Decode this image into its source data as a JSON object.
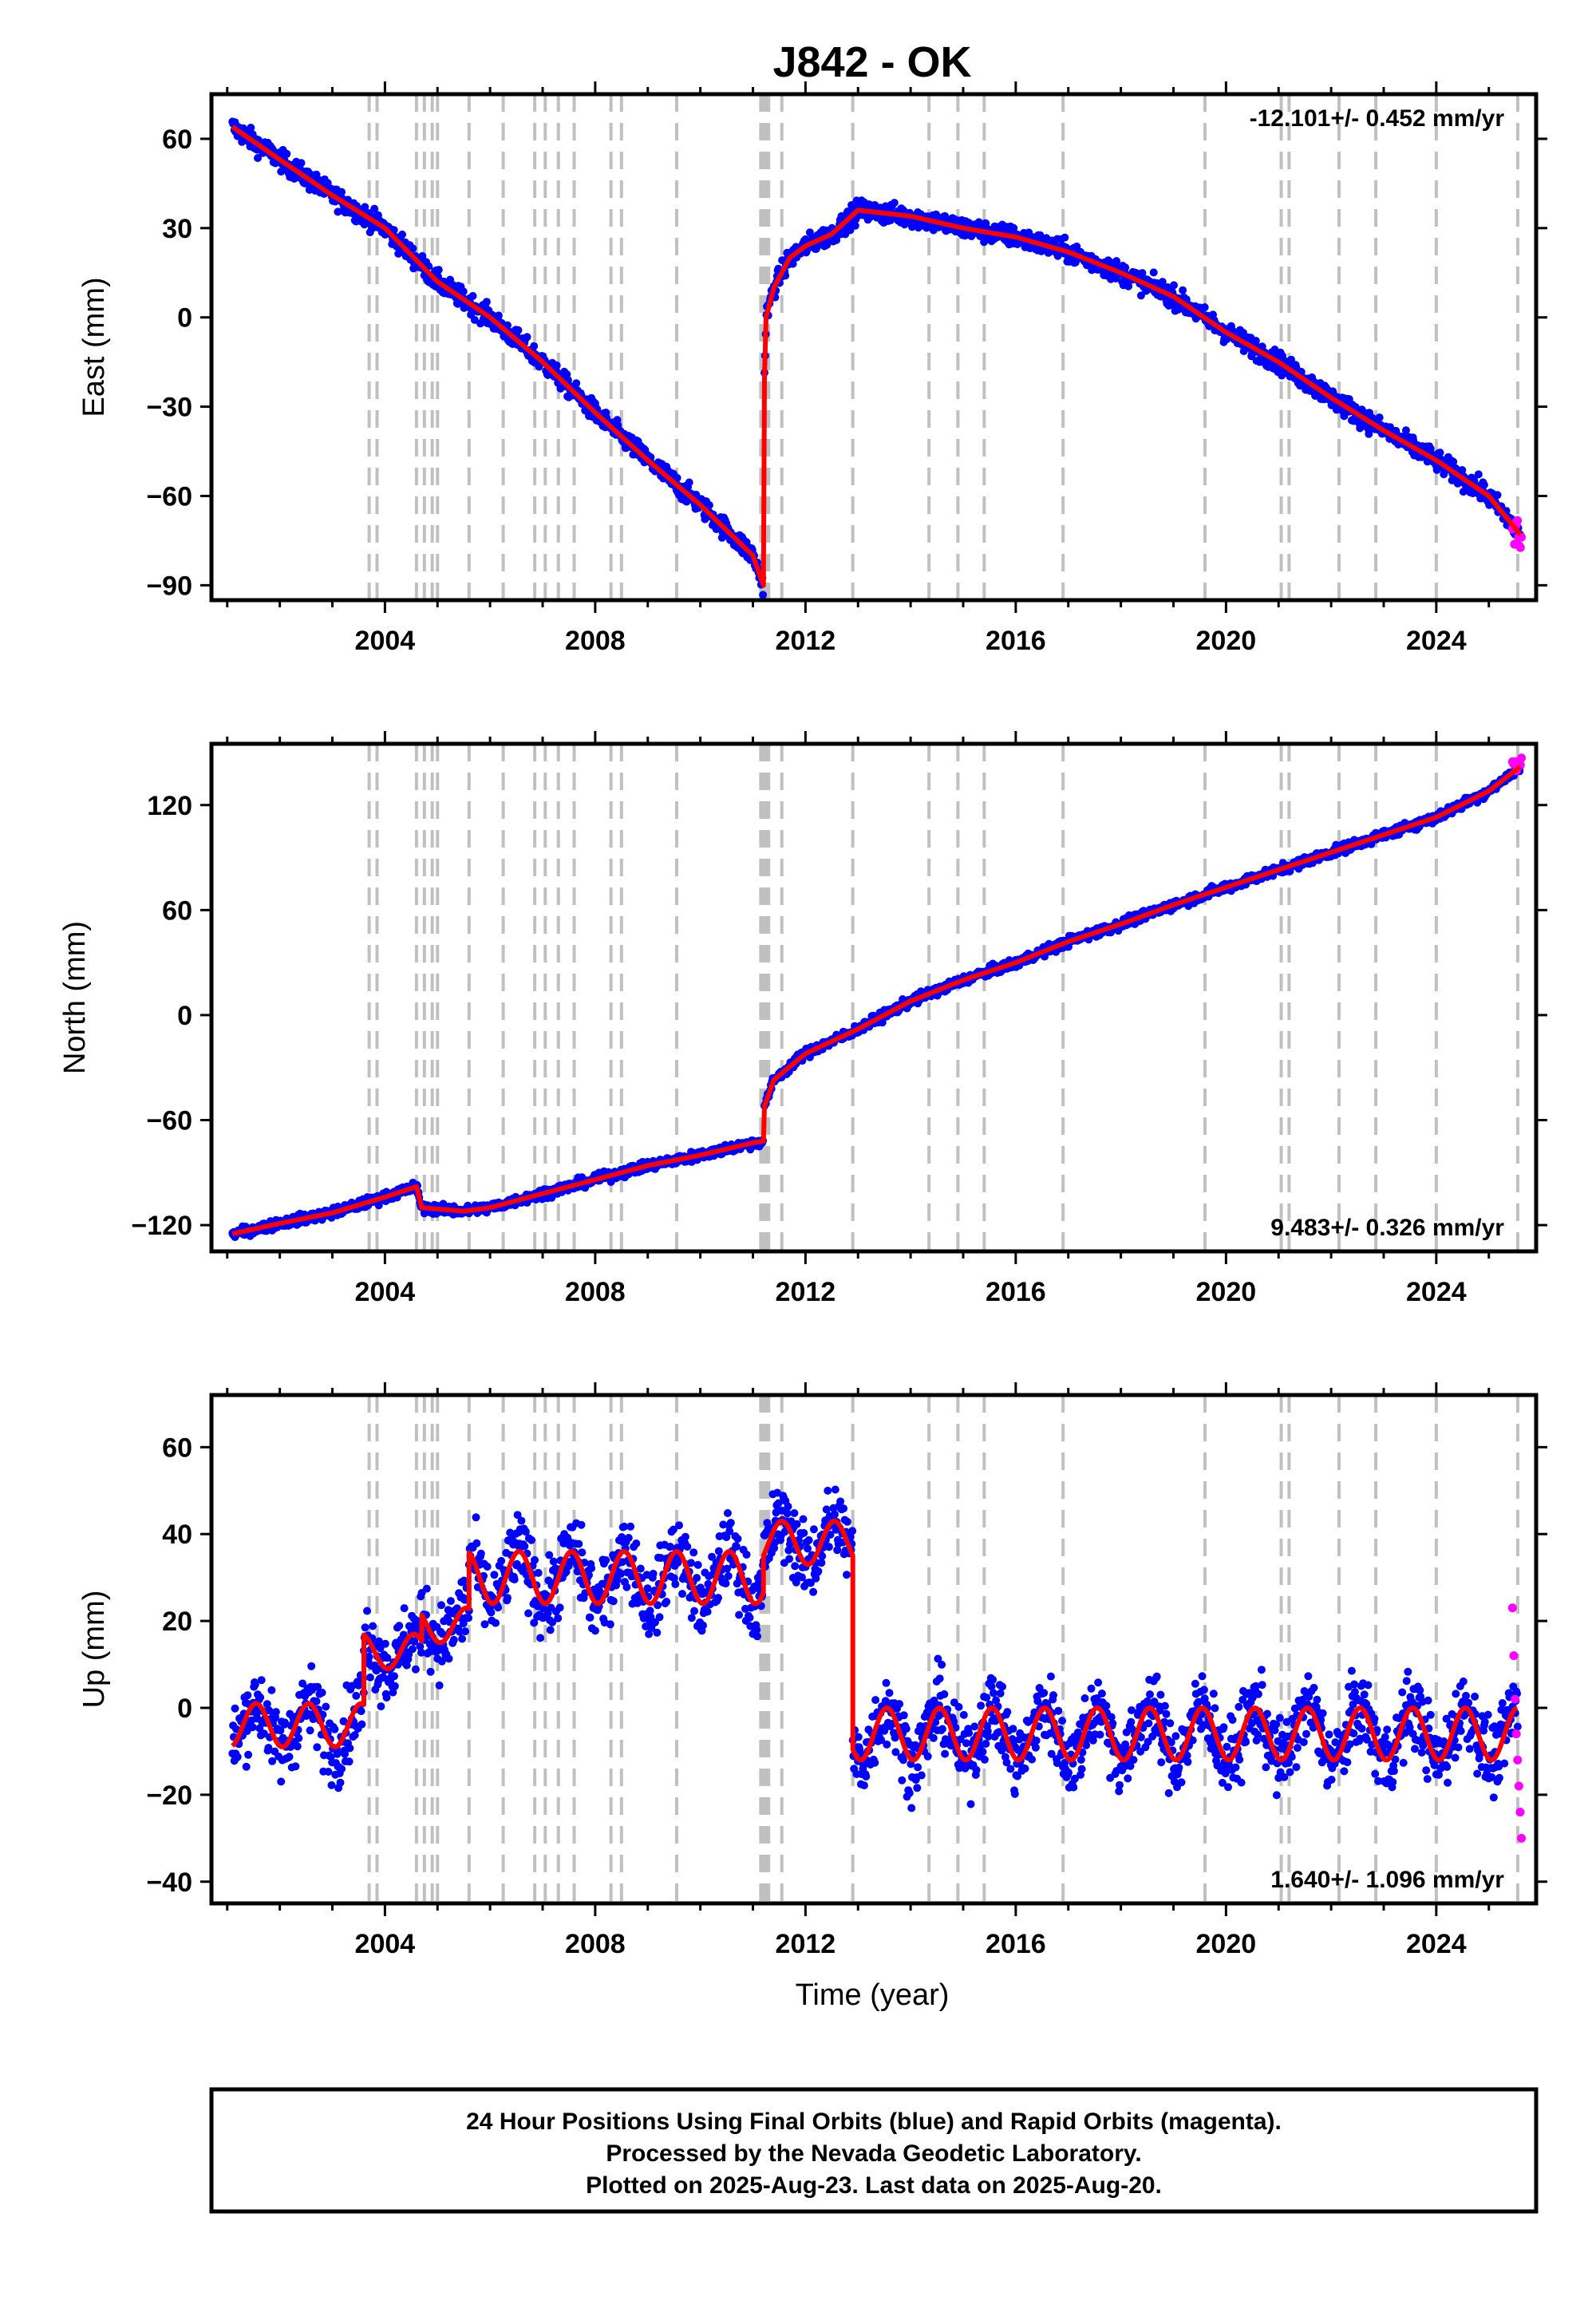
{
  "title": "J842 - OK",
  "xlabel": "Time (year)",
  "footer": {
    "line1": "24 Hour Positions Using Final Orbits (blue) and Rapid Orbits (magenta).",
    "line2": "Processed by the Nevada Geodetic Laboratory.",
    "line3": "Plotted on 2025-Aug-23. Last data on 2025-Aug-20."
  },
  "colors": {
    "final_orbits": "#0000ff",
    "rapid_orbits": "#ff00ff",
    "model_fit": "#ff0000",
    "event_lines": "#c0c0c0"
  },
  "chart_data": [
    {
      "type": "scatter",
      "panel": "east",
      "ylabel": "East (mm)",
      "rate_label": "-12.101+/- 0.452 mm/yr",
      "rate_position": "top-right",
      "xlim": [
        2000.7,
        2025.9
      ],
      "ylim": [
        -95,
        75
      ],
      "xticks": [
        2004,
        2008,
        2012,
        2016,
        2020,
        2024
      ],
      "xticklabels": [
        "2004",
        "2008",
        "2012",
        "2016",
        "2020",
        "2024"
      ],
      "yticks": [
        -90,
        -60,
        -30,
        0,
        30,
        60
      ],
      "yticklabels": [
        "−90",
        "−60",
        "−30",
        "0",
        "30",
        "60"
      ],
      "series": [
        {
          "kind": "model",
          "x": [
            2001.1,
            2002.0,
            2003.0,
            2004.0,
            2005.0,
            2006.0,
            2007.0,
            2008.0,
            2009.0,
            2010.0,
            2011.0,
            2011.2
          ],
          "y": [
            64,
            53,
            41,
            30,
            12,
            0,
            -15,
            -32,
            -48,
            -63,
            -80,
            -90
          ]
        },
        {
          "kind": "model",
          "x": [
            2011.22,
            2011.25,
            2011.4,
            2011.7,
            2012.0,
            2012.5,
            2013.0,
            2014.0,
            2015.0,
            2016.0,
            2017.0,
            2018.0,
            2019.0,
            2020.0,
            2021.0,
            2022.0,
            2023.0,
            2024.0,
            2025.0,
            2025.6
          ],
          "y": [
            -20,
            0,
            10,
            20,
            24,
            28,
            36,
            34,
            30,
            27,
            22,
            15,
            7,
            -5,
            -15,
            -27,
            -38,
            -48,
            -60,
            -73
          ]
        }
      ],
      "noise_mm": 2.5,
      "rapid_x": [
        2025.45,
        2025.62
      ],
      "rapid_y_range": [
        -78,
        -68
      ]
    },
    {
      "type": "scatter",
      "panel": "north",
      "ylabel": "North (mm)",
      "rate_label": "9.483+/- 0.326 mm/yr",
      "rate_position": "bottom-right",
      "xlim": [
        2000.7,
        2025.9
      ],
      "ylim": [
        -135,
        155
      ],
      "xticks": [
        2004,
        2008,
        2012,
        2016,
        2020,
        2024
      ],
      "xticklabels": [
        "2004",
        "2008",
        "2012",
        "2016",
        "2020",
        "2024"
      ],
      "yticks": [
        -120,
        -60,
        0,
        60,
        120
      ],
      "yticklabels": [
        "−120",
        "−60",
        "0",
        "60",
        "120"
      ],
      "series": [
        {
          "kind": "model",
          "x": [
            2001.1,
            2002.0,
            2003.0,
            2004.0,
            2004.6,
            2004.7,
            2005.5,
            2006.0,
            2007.0,
            2008.0,
            2009.0,
            2010.0,
            2011.0,
            2011.2
          ],
          "y": [
            -125,
            -119,
            -113,
            -104,
            -98,
            -110,
            -112,
            -110,
            -102,
            -94,
            -86,
            -80,
            -73,
            -72
          ]
        },
        {
          "kind": "model",
          "x": [
            2011.22,
            2011.4,
            2012.0,
            2013.0,
            2014.0,
            2015.0,
            2016.0,
            2017.0,
            2018.0,
            2019.0,
            2020.0,
            2021.0,
            2022.0,
            2023.0,
            2024.0,
            2025.0,
            2025.6
          ],
          "y": [
            -52,
            -37,
            -22,
            -8,
            8,
            20,
            30,
            42,
            52,
            63,
            73,
            83,
            93,
            103,
            113,
            128,
            142
          ]
        }
      ],
      "noise_mm": 2.0,
      "rapid_x": [
        2025.45,
        2025.62
      ],
      "rapid_y_range": [
        138,
        148
      ]
    },
    {
      "type": "scatter",
      "panel": "up",
      "ylabel": "Up (mm)",
      "rate_label": "1.640+/- 1.096 mm/yr",
      "rate_position": "bottom-right",
      "xlim": [
        2000.7,
        2025.9
      ],
      "ylim": [
        -45,
        72
      ],
      "xticks": [
        2004,
        2008,
        2012,
        2016,
        2020,
        2024
      ],
      "xticklabels": [
        "2004",
        "2008",
        "2012",
        "2016",
        "2020",
        "2024"
      ],
      "yticks": [
        -40,
        -20,
        0,
        20,
        40,
        60
      ],
      "yticklabels": [
        "−40",
        "−20",
        "0",
        "20",
        "40",
        "60"
      ],
      "segments": [
        {
          "x": [
            2001.1,
            2003.6
          ],
          "base": -4,
          "amp": 5
        },
        {
          "x": [
            2003.6,
            2004.7
          ],
          "base": 13,
          "amp": 4
        },
        {
          "x": [
            2004.7,
            2005.6
          ],
          "base": 19,
          "amp": 4
        },
        {
          "x": [
            2005.6,
            2011.2
          ],
          "base": 30,
          "amp": 6
        },
        {
          "x": [
            2011.2,
            2012.9
          ],
          "base": 38,
          "amp": 5
        },
        {
          "x": [
            2012.9,
            2025.55
          ],
          "base": -6,
          "amp": 6
        }
      ],
      "noise_mm": 6,
      "rapid_x": [
        2025.45,
        2025.62
      ],
      "rapid_y": [
        23,
        12,
        2,
        -6,
        -12,
        -18,
        -24,
        -30
      ]
    }
  ],
  "event_lines_x": [
    2003.7,
    2003.85,
    2004.6,
    2004.75,
    2004.9,
    2005.0,
    2005.6,
    2006.25,
    2006.85,
    2007.05,
    2007.3,
    2007.6,
    2008.3,
    2008.5,
    2009.55,
    2011.15,
    2011.2,
    2011.25,
    2011.3,
    2011.55,
    2012.9,
    2014.35,
    2014.9,
    2015.4,
    2016.9,
    2019.6,
    2021.05,
    2021.2,
    2022.15,
    2022.85,
    2024.0,
    2025.55
  ]
}
